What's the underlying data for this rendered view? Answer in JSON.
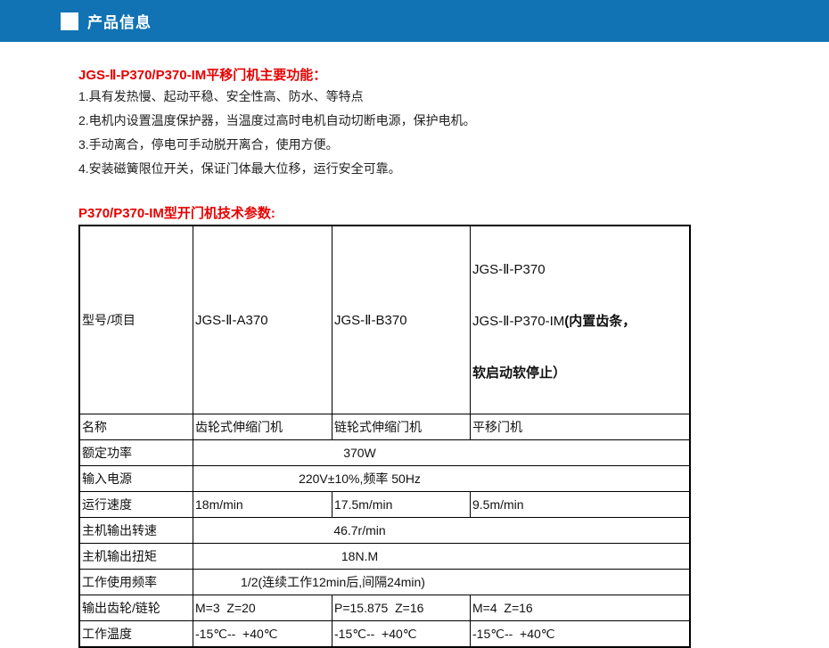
{
  "colors": {
    "bar_blue": "#1173b3",
    "heading_red": "#e60000",
    "table_border": "#000000"
  },
  "header": {
    "marker_icon": "white-square",
    "title": "产品信息"
  },
  "functions_section": {
    "heading": "JGS-Ⅱ-P370/P370-IM平移门机主要功能：",
    "items": [
      "1.具有发热慢、起动平稳、安全性高、防水、等特点",
      "2.电机内设置温度保护器，当温度过高时电机自动切断电源，保护电机。",
      "3.手动离合，停电可手动脱开离合，使用方便。",
      "4.安装磁簧限位开关，保证门体最大位移，运行安全可靠。"
    ]
  },
  "params_section": {
    "heading": "P370/P370-IM型开门机技术参数:"
  },
  "table": {
    "model_row": {
      "label": "型号/项目",
      "col2": "JGS-Ⅱ-A370",
      "col3": "JGS-Ⅱ-B370",
      "col4_line1": "JGS-Ⅱ-P370",
      "col4_line2a": "JGS-Ⅱ-P370-IM",
      "col4_line2b": "(内置齿条，",
      "col4_line3": "软启动软停止）"
    },
    "rows": [
      {
        "label": "名称",
        "c2": "齿轮式伸缩门机",
        "c3": "链轮式伸缩门机",
        "c4": "平移门机"
      },
      {
        "label": "额定功率",
        "value": "370W"
      },
      {
        "label": "输入电源",
        "value": "220V±10%,频率 50Hz"
      },
      {
        "label": "运行速度",
        "c2": "18m/min",
        "c3": "17.5m/min",
        "c4": "9.5m/min"
      },
      {
        "label": "主机输出转速",
        "value": "46.7r/min"
      },
      {
        "label": "主机输出扭矩",
        "value": "18N.M"
      },
      {
        "label": "工作使用频率",
        "value": "1/2(连续工作12min后,间隔24min)"
      },
      {
        "label": "输出齿轮/链轮",
        "c2": "M=3  Z=20",
        "c3": "P=15.875  Z=16",
        "c4": "M=4  Z=16"
      },
      {
        "label": "工作温度",
        "c2": "-15℃--  +40℃",
        "c3": "-15℃--  +40℃",
        "c4": "-15℃--  +40℃"
      }
    ]
  }
}
